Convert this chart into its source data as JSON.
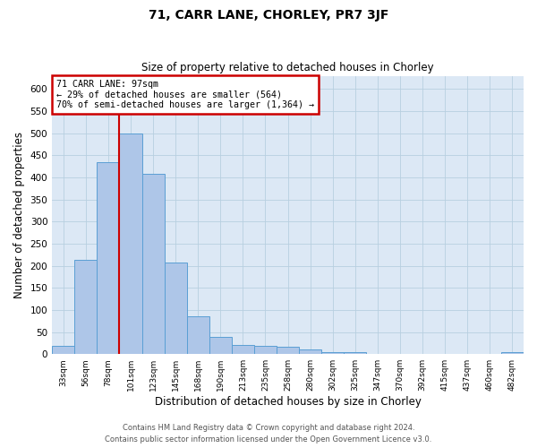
{
  "title1": "71, CARR LANE, CHORLEY, PR7 3JF",
  "title2": "Size of property relative to detached houses in Chorley",
  "xlabel": "Distribution of detached houses by size in Chorley",
  "ylabel": "Number of detached properties",
  "footnote1": "Contains HM Land Registry data © Crown copyright and database right 2024.",
  "footnote2": "Contains public sector information licensed under the Open Government Licence v3.0.",
  "bar_labels": [
    "33sqm",
    "56sqm",
    "78sqm",
    "101sqm",
    "123sqm",
    "145sqm",
    "168sqm",
    "190sqm",
    "213sqm",
    "235sqm",
    "258sqm",
    "280sqm",
    "302sqm",
    "325sqm",
    "347sqm",
    "370sqm",
    "392sqm",
    "415sqm",
    "437sqm",
    "460sqm",
    "482sqm"
  ],
  "bar_values": [
    18,
    213,
    435,
    500,
    408,
    207,
    85,
    38,
    20,
    18,
    17,
    11,
    5,
    5,
    0,
    0,
    0,
    0,
    0,
    0,
    5
  ],
  "bar_color": "#aec6e8",
  "bar_edgecolor": "#5a9fd4",
  "annotation_line1": "71 CARR LANE: 97sqm",
  "annotation_line2": "← 29% of detached houses are smaller (564)",
  "annotation_line3": "70% of semi-detached houses are larger (1,364) →",
  "vline_x": 2.5,
  "vline_color": "#cc0000",
  "annotation_box_edgecolor": "#cc0000",
  "ylim": [
    0,
    630
  ],
  "yticks": [
    0,
    50,
    100,
    150,
    200,
    250,
    300,
    350,
    400,
    450,
    500,
    550,
    600
  ],
  "background_color": "#ffffff",
  "axes_facecolor": "#dce8f5",
  "grid_color": "#b8cfe0"
}
